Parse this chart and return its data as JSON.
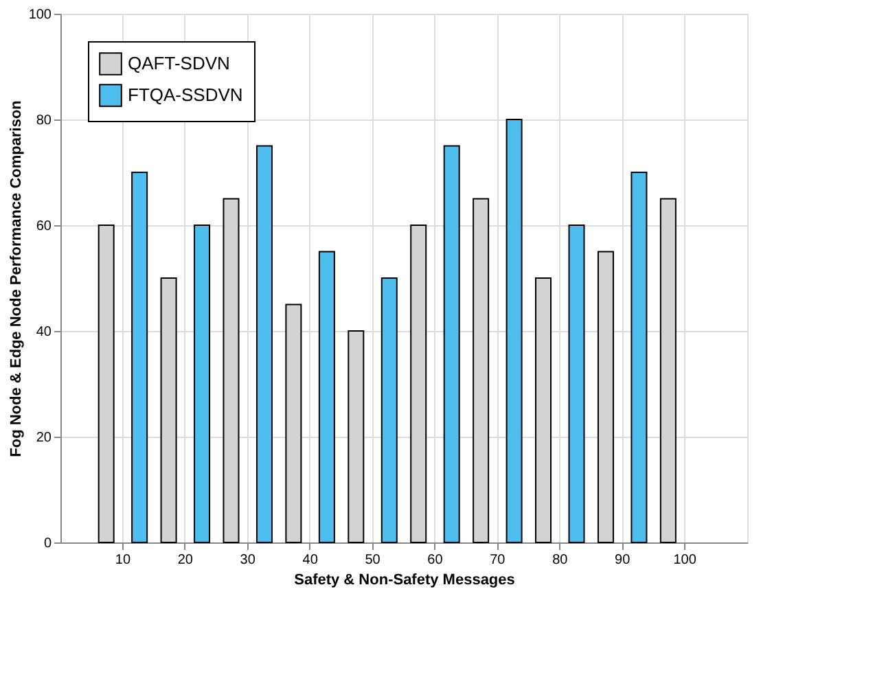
{
  "chart_data": {
    "type": "bar",
    "xlabel": "Safety & Non-Safety Messages",
    "ylabel": "Fog Node & Edge Node Performance Comparison",
    "categories": [
      "10",
      "20",
      "30",
      "40",
      "50",
      "60",
      "70",
      "80",
      "90",
      "100"
    ],
    "series": [
      {
        "name": "QAFT-SDVN",
        "color": "#d3d3d3",
        "values": [
          60,
          50,
          65,
          45,
          40,
          60,
          65,
          50,
          55,
          65
        ]
      },
      {
        "name": "FTQA-SSDVN",
        "color": "#4dbeee",
        "values": [
          70,
          60,
          75,
          55,
          50,
          75,
          80,
          60,
          70,
          null
        ]
      }
    ],
    "ylim": [
      0,
      100
    ],
    "yticks": [
      0,
      20,
      40,
      60,
      80,
      100
    ],
    "grid": true,
    "legend": "top left"
  }
}
